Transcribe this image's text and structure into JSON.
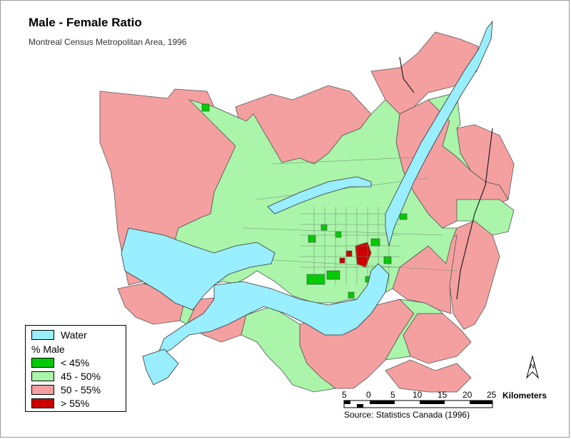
{
  "title": "Male - Female Ratio",
  "subtitle": "Montreal Census Metropolitan Area, 1996",
  "colors": {
    "water": "#99eeff",
    "lt45": "#00cc00",
    "r45_50": "#aaf5aa",
    "r50_55": "#f5a0a0",
    "gt55": "#cc0000",
    "boundary": "#6a8a6a"
  },
  "legend": {
    "water_label": "Water",
    "heading": "% Male",
    "items": [
      {
        "label": "< 45%",
        "color": "#00cc00"
      },
      {
        "label": "45 - 50%",
        "color": "#aaf5aa"
      },
      {
        "label": "50 - 55%",
        "color": "#f5a0a0"
      },
      {
        "label": "> 55%",
        "color": "#cc0000"
      }
    ]
  },
  "scale": {
    "labels": [
      "5",
      "0",
      "5",
      "10",
      "15",
      "20",
      "25"
    ],
    "unit": "Kilometers"
  },
  "north_label": "N",
  "source": "Source: Statistics Canada (1996)"
}
